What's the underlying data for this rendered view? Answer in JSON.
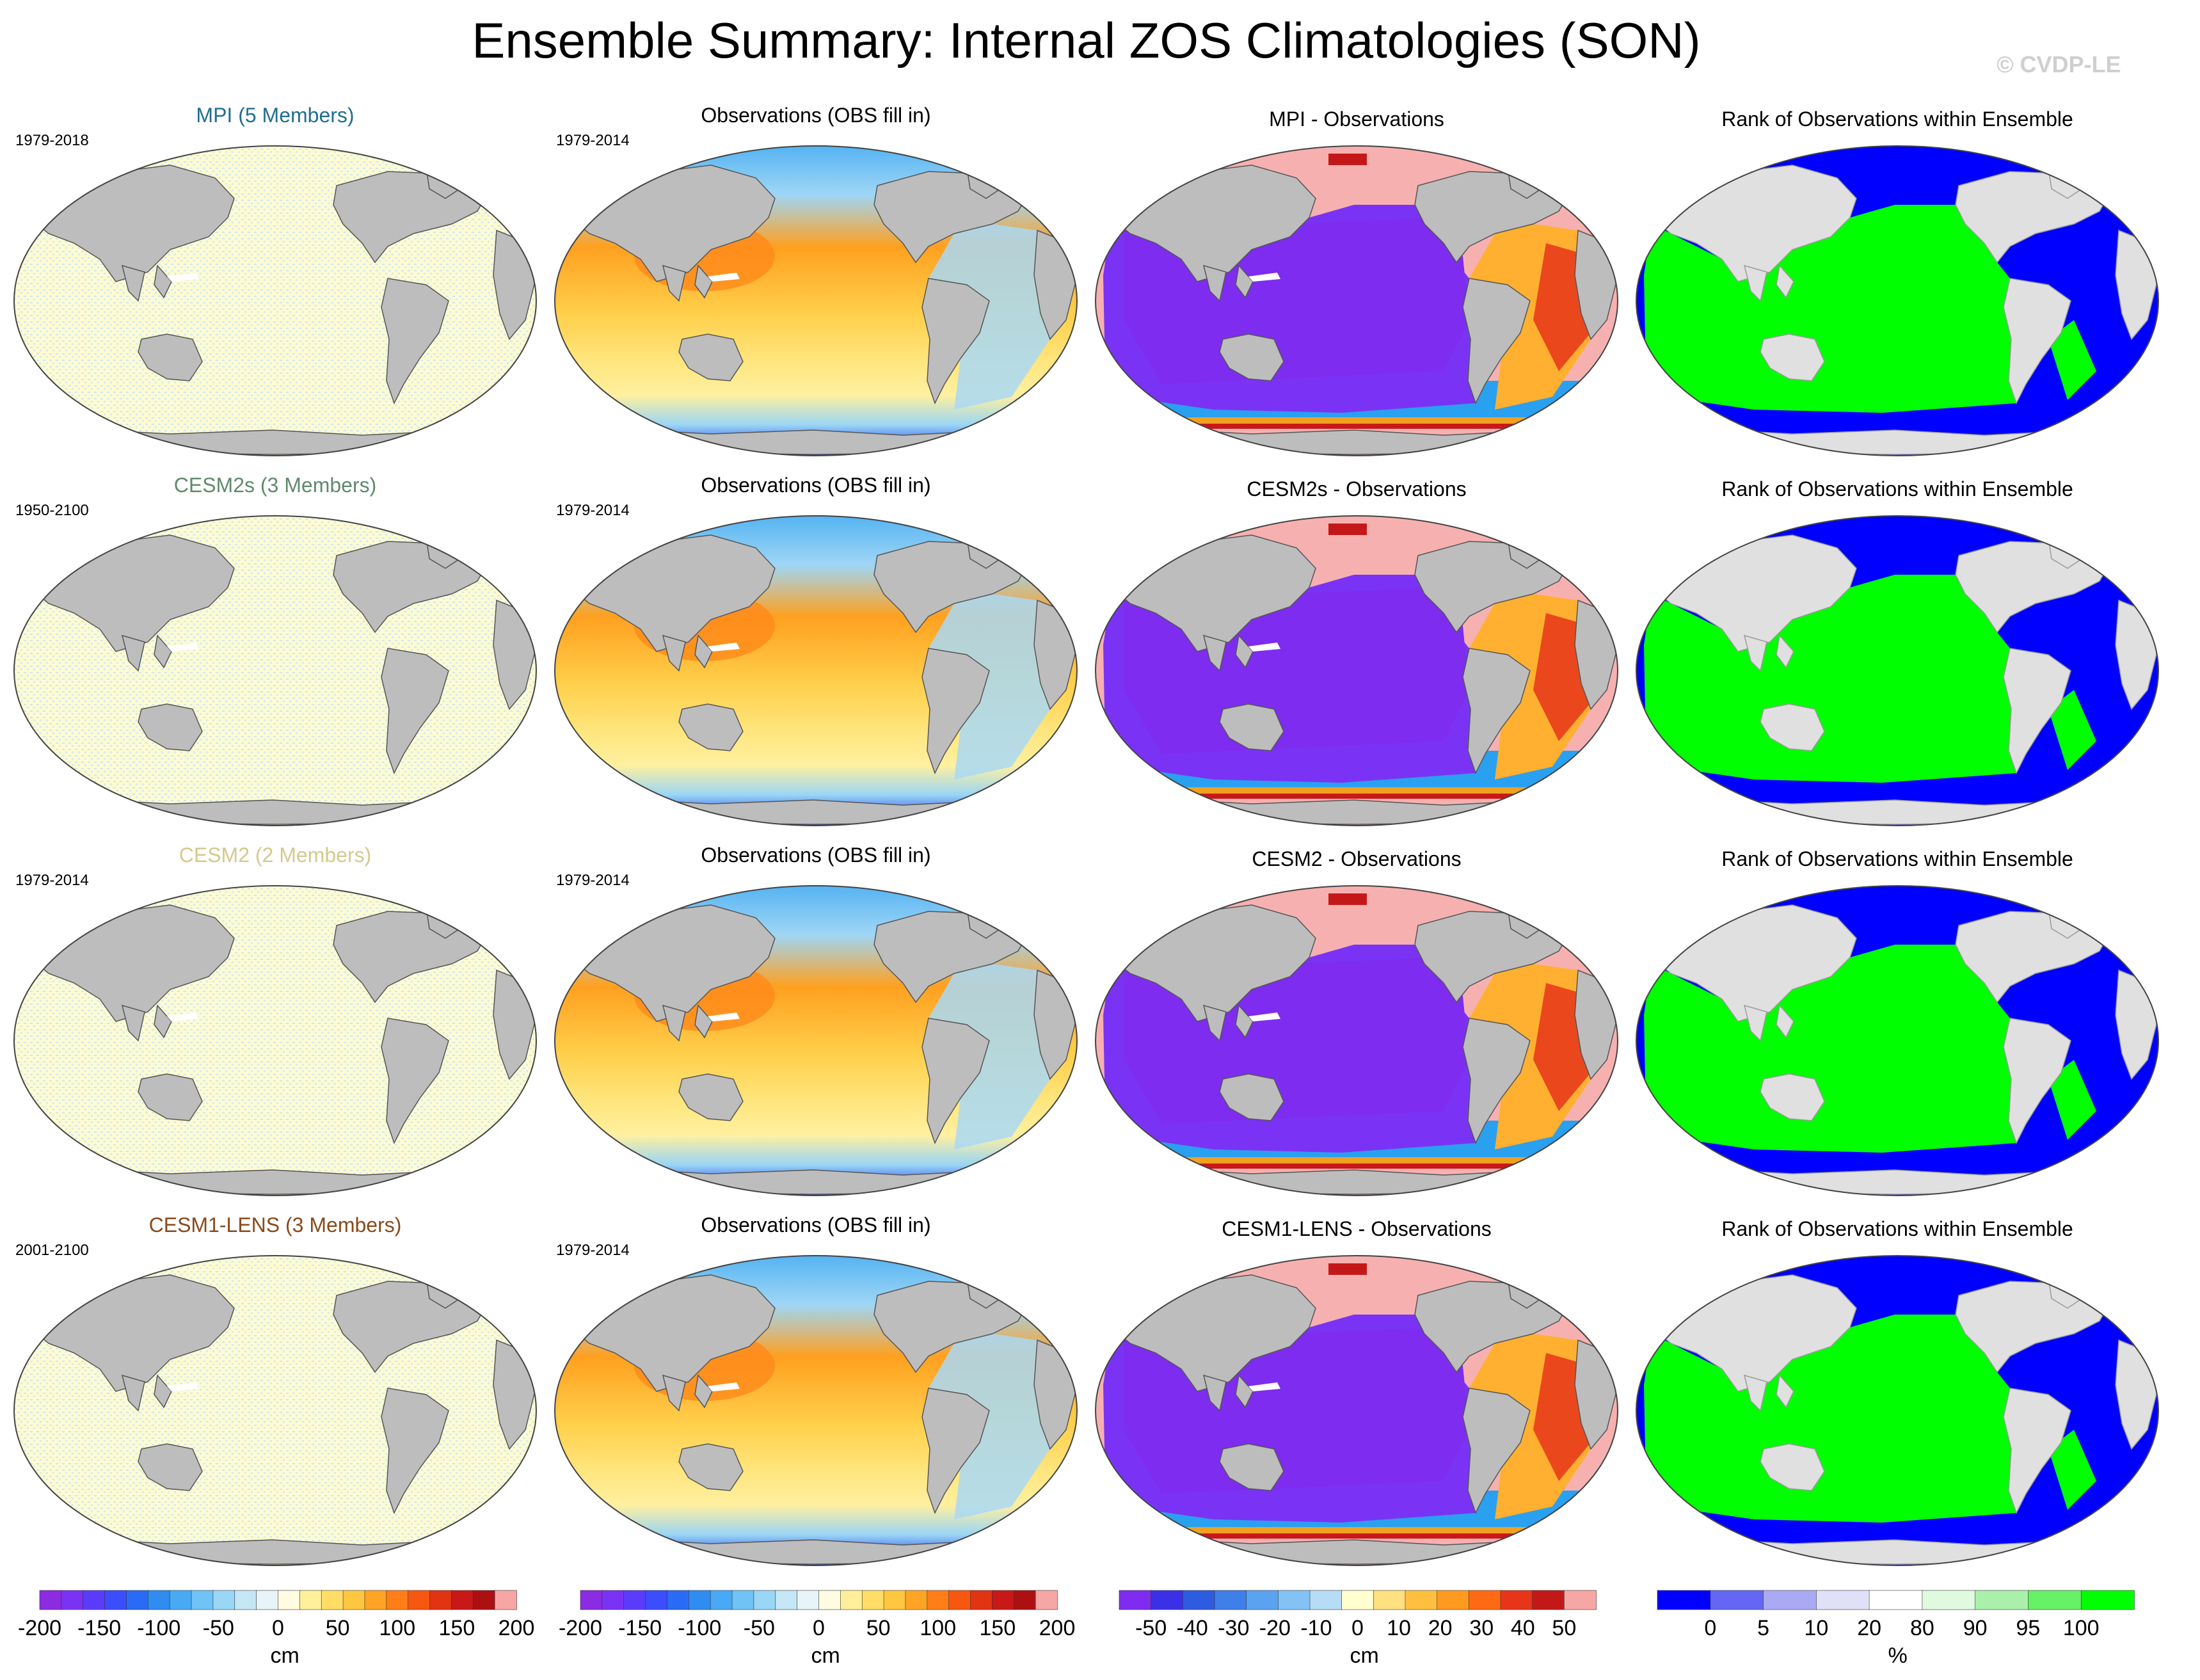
{
  "title": "Ensemble Summary: Internal ZOS Climatologies (SON)",
  "watermark": "© CVDP-LE",
  "rows": [
    {
      "ensemble": {
        "title": "MPI (5 Members)",
        "title_color": "#1f6e91",
        "years": "1979-2018"
      },
      "observations": {
        "title": "Observations (OBS fill in)",
        "years": "1979-2014"
      },
      "difference": {
        "title": "MPI - Observations"
      },
      "rank": {
        "title": "Rank of Observations within Ensemble"
      }
    },
    {
      "ensemble": {
        "title": "CESM2s (3 Members)",
        "title_color": "#5f8a6c",
        "years": "1950-2100"
      },
      "observations": {
        "title": "Observations (OBS fill in)",
        "years": "1979-2014"
      },
      "difference": {
        "title": "CESM2s - Observations"
      },
      "rank": {
        "title": "Rank of Observations within Ensemble"
      }
    },
    {
      "ensemble": {
        "title": "CESM2 (2 Members)",
        "title_color": "#d4c98e",
        "years": "1979-2014"
      },
      "observations": {
        "title": "Observations (OBS fill in)",
        "years": "1979-2014"
      },
      "difference": {
        "title": "CESM2 - Observations"
      },
      "rank": {
        "title": "Rank of Observations within Ensemble"
      }
    },
    {
      "ensemble": {
        "title": "CESM1-LENS (3 Members)",
        "title_color": "#8a4a1a",
        "years": "2001-2100"
      },
      "observations": {
        "title": "Observations (OBS fill in)",
        "years": "1979-2014"
      },
      "difference": {
        "title": "CESM1-LENS - Observations"
      },
      "rank": {
        "title": "Rank of Observations within Ensemble"
      }
    }
  ],
  "colorbars": [
    {
      "name": "ensemble-colorbar",
      "unit": "cm",
      "labels": [
        "-200",
        "-150",
        "-100",
        "-50",
        "0",
        "50",
        "100",
        "150",
        "200"
      ],
      "colors": [
        "#8b2be2",
        "#7a33f5",
        "#5b3cff",
        "#3b4dff",
        "#2a6bf5",
        "#2f8cf0",
        "#48a9f5",
        "#6fc3f6",
        "#9ad6f5",
        "#c4e6f5",
        "#e6f3f7",
        "#fffbe0",
        "#ffef9a",
        "#ffdd66",
        "#ffc640",
        "#ffa425",
        "#ff7e17",
        "#f85710",
        "#e23312",
        "#c81818",
        "#ad1010",
        "#f7a6a6"
      ]
    },
    {
      "name": "observations-colorbar",
      "unit": "cm",
      "labels": [
        "-200",
        "-150",
        "-100",
        "-50",
        "0",
        "50",
        "100",
        "150",
        "200"
      ],
      "colors": [
        "#8b2be2",
        "#7a33f5",
        "#5b3cff",
        "#3b4dff",
        "#2a6bf5",
        "#2f8cf0",
        "#48a9f5",
        "#6fc3f6",
        "#9ad6f5",
        "#c4e6f5",
        "#e6f3f7",
        "#fffbe0",
        "#ffef9a",
        "#ffdd66",
        "#ffc640",
        "#ffa425",
        "#ff7e17",
        "#f85710",
        "#e23312",
        "#c81818",
        "#ad1010",
        "#f7a6a6"
      ]
    },
    {
      "name": "difference-colorbar",
      "unit": "cm",
      "labels": [
        "-50",
        "-40",
        "-30",
        "-20",
        "-10",
        "0",
        "10",
        "20",
        "30",
        "40",
        "50"
      ],
      "colors": [
        "#7e2cf0",
        "#3b30e8",
        "#2e5ce0",
        "#3f7fe8",
        "#5aa3f0",
        "#83c2f5",
        "#b7dcf5",
        "#ffffd0",
        "#ffe080",
        "#ffc040",
        "#ff9a20",
        "#ff6a14",
        "#e8351a",
        "#c41818",
        "#f7a6a6"
      ]
    },
    {
      "name": "rank-colorbar",
      "unit": "%",
      "labels": [
        "0",
        "5",
        "10",
        "20",
        "80",
        "90",
        "95",
        "100"
      ],
      "colors": [
        "#0000ff",
        "#6666f4",
        "#aaaaf4",
        "#e0e0f8",
        "#ffffff",
        "#e0fae0",
        "#aaf0aa",
        "#66f066",
        "#00ff00"
      ]
    }
  ]
}
